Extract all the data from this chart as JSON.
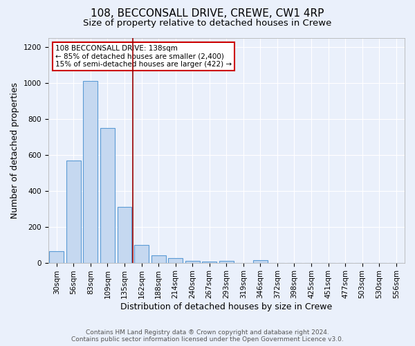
{
  "title": "108, BECCONSALL DRIVE, CREWE, CW1 4RP",
  "subtitle": "Size of property relative to detached houses in Crewe",
  "xlabel": "Distribution of detached houses by size in Crewe",
  "ylabel": "Number of detached properties",
  "footnote1": "Contains HM Land Registry data ® Crown copyright and database right 2024.",
  "footnote2": "Contains public sector information licensed under the Open Government Licence v3.0.",
  "categories": [
    "30sqm",
    "56sqm",
    "83sqm",
    "109sqm",
    "135sqm",
    "162sqm",
    "188sqm",
    "214sqm",
    "240sqm",
    "267sqm",
    "293sqm",
    "319sqm",
    "346sqm",
    "372sqm",
    "398sqm",
    "425sqm",
    "451sqm",
    "477sqm",
    "503sqm",
    "530sqm",
    "556sqm"
  ],
  "values": [
    65,
    570,
    1010,
    750,
    310,
    100,
    40,
    25,
    10,
    5,
    10,
    0,
    15,
    0,
    0,
    0,
    0,
    0,
    0,
    0,
    0
  ],
  "bar_color": "#c5d8f0",
  "bar_edge_color": "#5b9bd5",
  "background_color": "#eaf0fb",
  "grid_color": "#ffffff",
  "vline_x": 4.5,
  "vline_color": "#990000",
  "annotation_text": "108 BECCONSALL DRIVE: 138sqm\n← 85% of detached houses are smaller (2,400)\n15% of semi-detached houses are larger (422) →",
  "annotation_box_color": "#ffffff",
  "annotation_box_edge": "#cc0000",
  "ylim": [
    0,
    1250
  ],
  "yticks": [
    0,
    200,
    400,
    600,
    800,
    1000,
    1200
  ],
  "title_fontsize": 11,
  "subtitle_fontsize": 9.5,
  "axis_label_fontsize": 9,
  "tick_fontsize": 7.5,
  "footnote_fontsize": 6.5,
  "annotation_fontsize": 7.5
}
